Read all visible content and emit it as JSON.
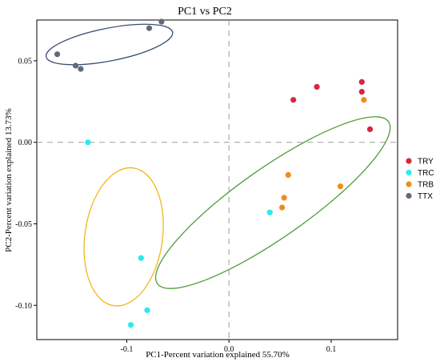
{
  "chart_data": {
    "type": "scatter",
    "title": "PC1 vs PC2",
    "xlabel": "PC1-Percent variation explained 55.70%",
    "ylabel": "PC2-Percent variation explained 13.73%",
    "xlim": [
      -0.188,
      0.165
    ],
    "ylim": [
      -0.121,
      0.075
    ],
    "x_ticks": [
      {
        "value": -0.1,
        "label": "-0.1"
      },
      {
        "value": 0.0,
        "label": "0.0"
      },
      {
        "value": 0.1,
        "label": "0.1"
      }
    ],
    "y_ticks": [
      {
        "value": 0.05,
        "label": "0.05"
      },
      {
        "value": 0.0,
        "label": "0.00"
      },
      {
        "value": -0.05,
        "label": "-0.05"
      },
      {
        "value": -0.1,
        "label": "-0.10"
      }
    ],
    "reference_lines": {
      "x": 0,
      "y": 0,
      "style": "dashed",
      "color": "#aaaaaa"
    },
    "legend_position": "right",
    "series": [
      {
        "name": "TRY",
        "color": "#d7263d",
        "points": [
          [
            0.063,
            0.026
          ],
          [
            0.086,
            0.034
          ],
          [
            0.13,
            0.037
          ],
          [
            0.13,
            0.031
          ],
          [
            0.138,
            0.008
          ]
        ]
      },
      {
        "name": "TRC",
        "color": "#2ee8ec",
        "points": [
          [
            -0.138,
            0.0
          ],
          [
            0.04,
            -0.043
          ],
          [
            -0.086,
            -0.071
          ],
          [
            -0.08,
            -0.103
          ],
          [
            -0.096,
            -0.112
          ]
        ]
      },
      {
        "name": "TRB",
        "color": "#f28b1e",
        "points": [
          [
            0.132,
            0.026
          ],
          [
            0.058,
            -0.02
          ],
          [
            0.054,
            -0.034
          ],
          [
            0.052,
            -0.04
          ],
          [
            0.109,
            -0.027
          ]
        ]
      },
      {
        "name": "TTX",
        "color": "#5f6b78",
        "points": [
          [
            -0.168,
            0.054
          ],
          [
            -0.15,
            0.047
          ],
          [
            -0.145,
            0.045
          ],
          [
            -0.078,
            0.07
          ],
          [
            -0.066,
            0.074
          ]
        ]
      }
    ],
    "ellipses": [
      {
        "group": "TTX",
        "color": "#3d4e7a",
        "center": [
          -0.117,
          0.06
        ],
        "rx": 0.063,
        "ry": 0.016,
        "angle_deg": -11
      },
      {
        "group": "TRC",
        "color": "#f2b61a",
        "center": [
          -0.103,
          -0.058
        ],
        "rx": 0.038,
        "ry": 0.068,
        "angle_deg": 8
      },
      {
        "group": "TRY/TRB",
        "color": "#4f9d3a",
        "center": [
          0.043,
          -0.037
        ],
        "rx": 0.138,
        "ry": 0.034,
        "angle_deg": -35
      }
    ]
  }
}
